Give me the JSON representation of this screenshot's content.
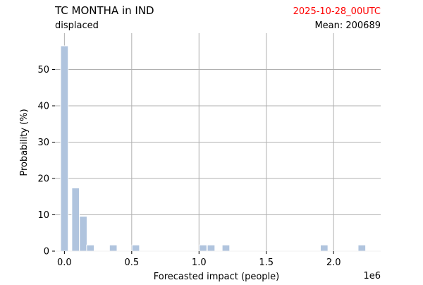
{
  "header": {
    "title": "TC MONTHA in IND",
    "subtitle": "displaced",
    "date": "2025-10-28_00UTC",
    "mean_label": "Mean: 200689"
  },
  "colors": {
    "bar": "#b0c4de",
    "grid": "#b0b0b0",
    "date": "#ff0000",
    "text": "#000000"
  },
  "chart_data": {
    "type": "bar",
    "title": "TC MONTHA in IND",
    "subtitle": "displaced",
    "xlabel": "Forecasted impact (people)",
    "ylabel": "Probability (%)",
    "x_offset_label": "1e6",
    "xlim": [
      -0.07,
      2.35
    ],
    "ylim": [
      0,
      60
    ],
    "x_ticks": [
      0.0,
      0.5,
      1.0,
      1.5,
      2.0
    ],
    "x_tick_labels": [
      "0.0",
      "0.5",
      "1.0",
      "1.5",
      "2.0"
    ],
    "y_ticks": [
      0,
      10,
      20,
      30,
      40,
      50
    ],
    "y_tick_labels": [
      "0",
      "10",
      "20",
      "30",
      "40",
      "50"
    ],
    "grid": true,
    "bin_width": 0.056,
    "bars": [
      {
        "x": 0.0,
        "value": 56.5
      },
      {
        "x": 0.083,
        "value": 17.4
      },
      {
        "x": 0.14,
        "value": 9.6
      },
      {
        "x": 0.193,
        "value": 1.7
      },
      {
        "x": 0.363,
        "value": 1.7
      },
      {
        "x": 0.53,
        "value": 1.7
      },
      {
        "x": 1.03,
        "value": 1.7
      },
      {
        "x": 1.09,
        "value": 1.7
      },
      {
        "x": 1.2,
        "value": 1.7
      },
      {
        "x": 1.93,
        "value": 1.7
      },
      {
        "x": 2.21,
        "value": 1.7
      }
    ]
  }
}
